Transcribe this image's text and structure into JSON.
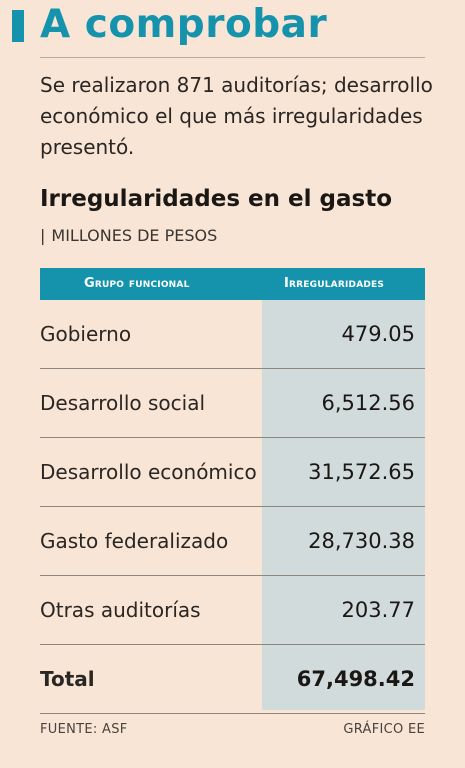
{
  "header": {
    "title": "A comprobar",
    "subtitle": "Se realizaron 871 auditorías; desarrollo económico el que más irregularidades presentó."
  },
  "section": {
    "title": "Irregularidades en el gasto",
    "units_bar": "|",
    "units": "MILLONES DE PESOS"
  },
  "table": {
    "columns": [
      "Grupo funcional",
      "Irregularidades"
    ],
    "rows": [
      {
        "name": "Gobierno",
        "value": "479.05"
      },
      {
        "name": "Desarrollo social",
        "value": "6,512.56"
      },
      {
        "name": "Desarrollo económico",
        "value": "31,572.65"
      },
      {
        "name": "Gasto federalizado",
        "value": "28,730.38"
      },
      {
        "name": "Otras auditorías",
        "value": "203.77"
      }
    ],
    "total": {
      "name": "Total",
      "value": "67,498.42"
    }
  },
  "footer": {
    "source": "FUENTE: ASF",
    "credit": "GRÁFICO EE"
  },
  "colors": {
    "accent": "#1593ad",
    "background": "#f8e5d6",
    "value_column": "#d2dbdc"
  }
}
